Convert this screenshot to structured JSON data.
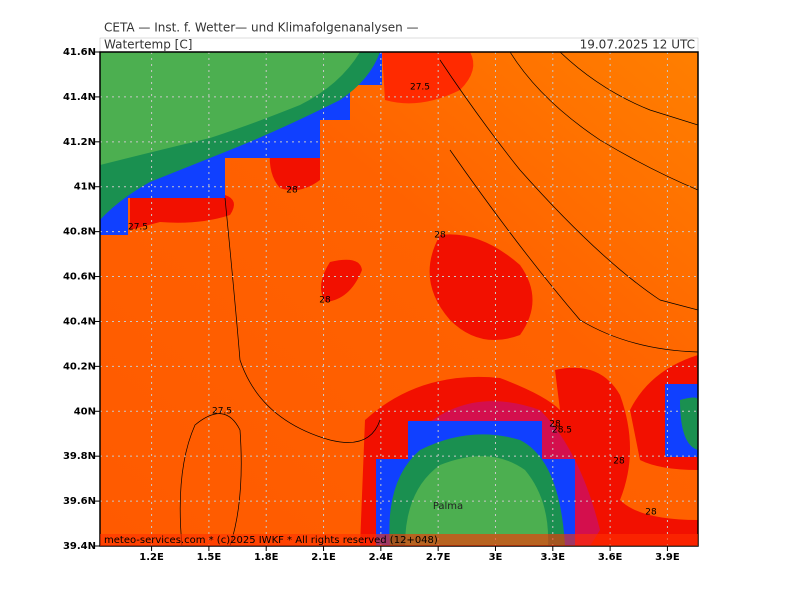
{
  "header": {
    "institute": "CETA — Inst. f. Wetter— und Klimafolgenanalysen —",
    "variable": "Watertemp [C]",
    "valid_time": "19.07.2025 12 UTC"
  },
  "map": {
    "xlim": [
      0.93,
      4.06
    ],
    "ylim": [
      39.4,
      41.6
    ],
    "xticks": [
      {
        "value": 1.2,
        "label": "1.2E"
      },
      {
        "value": 1.5,
        "label": "1.5E"
      },
      {
        "value": 1.8,
        "label": "1.8E"
      },
      {
        "value": 2.1,
        "label": "2.1E"
      },
      {
        "value": 2.4,
        "label": "2.4E"
      },
      {
        "value": 2.7,
        "label": "2.7E"
      },
      {
        "value": 3,
        "label": "3E"
      },
      {
        "value": 3.3,
        "label": "3.3E"
      },
      {
        "value": 3.6,
        "label": "3.6E"
      },
      {
        "value": 3.9,
        "label": "3.9E"
      }
    ],
    "yticks": [
      {
        "value": 39.4,
        "label": "39.4N"
      },
      {
        "value": 39.6,
        "label": "39.6N"
      },
      {
        "value": 39.8,
        "label": "39.8N"
      },
      {
        "value": 40,
        "label": "40N"
      },
      {
        "value": 40.2,
        "label": "40.2N"
      },
      {
        "value": 40.4,
        "label": "40.4N"
      },
      {
        "value": 40.6,
        "label": "40.6N"
      },
      {
        "value": 40.8,
        "label": "40.8N"
      },
      {
        "value": 41,
        "label": "41N"
      },
      {
        "value": 41.2,
        "label": "41.2N"
      },
      {
        "value": 41.4,
        "label": "41.4N"
      },
      {
        "value": 41.6,
        "label": "41.6N"
      }
    ],
    "grid": true,
    "contour_labels": [
      27.5,
      28,
      27.5,
      28,
      28,
      27.5,
      28,
      28.5,
      28,
      28
    ],
    "place": "Palma"
  },
  "footer": "meteo-services.com * (c)2025 IWKF * All rights reserved (12+048)"
}
